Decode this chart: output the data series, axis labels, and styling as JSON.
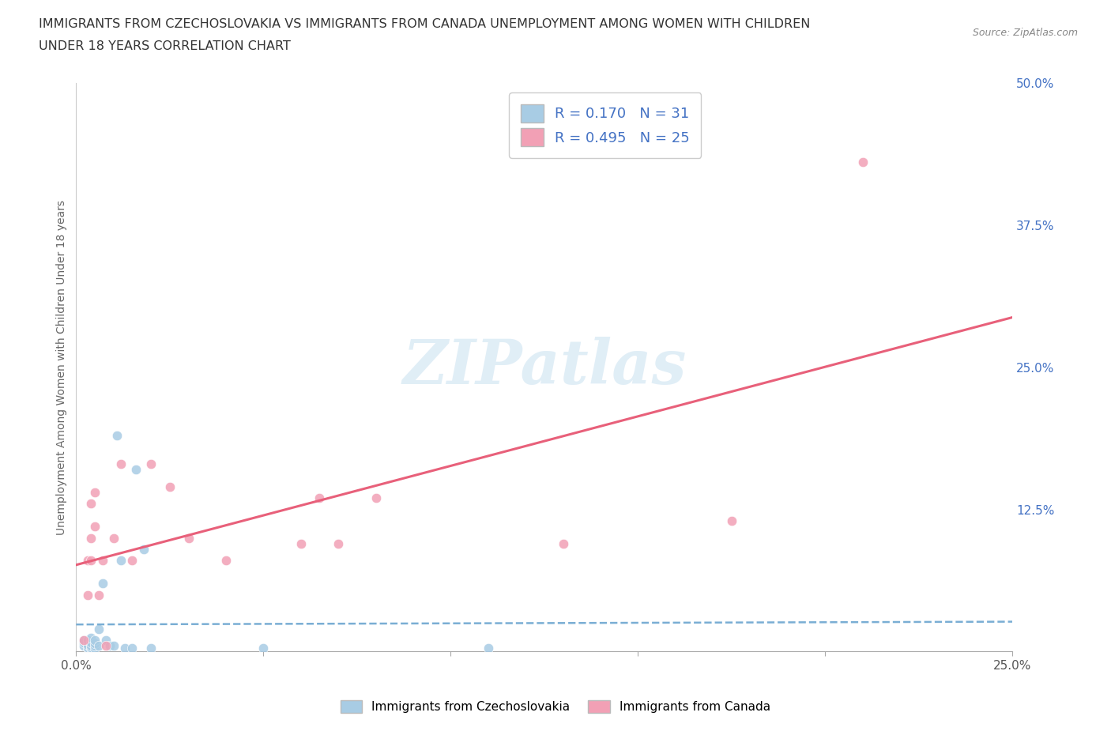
{
  "title_line1": "IMMIGRANTS FROM CZECHOSLOVAKIA VS IMMIGRANTS FROM CANADA UNEMPLOYMENT AMONG WOMEN WITH CHILDREN",
  "title_line2": "UNDER 18 YEARS CORRELATION CHART",
  "source": "Source: ZipAtlas.com",
  "ylabel": "Unemployment Among Women with Children Under 18 years",
  "xlim": [
    0.0,
    0.25
  ],
  "ylim": [
    0.0,
    0.5
  ],
  "xticks": [
    0.0,
    0.05,
    0.1,
    0.15,
    0.2,
    0.25
  ],
  "yticks_right": [
    0.0,
    0.125,
    0.25,
    0.375,
    0.5
  ],
  "ytick_right_labels": [
    "",
    "12.5%",
    "25.0%",
    "37.5%",
    "50.0%"
  ],
  "legend_R1": "R = 0.170",
  "legend_N1": "N = 31",
  "legend_R2": "R = 0.495",
  "legend_N2": "N = 25",
  "color_czech": "#a8cce4",
  "color_canada": "#f2a0b5",
  "color_trend_czech": "#7aaed4",
  "color_trend_canada": "#e8607a",
  "color_text_blue": "#4472c4",
  "watermark": "ZIPatlas",
  "background_color": "#ffffff",
  "grid_color": "#d8d8d8",
  "czech_x": [
    0.002,
    0.002,
    0.002,
    0.003,
    0.003,
    0.003,
    0.003,
    0.004,
    0.004,
    0.004,
    0.004,
    0.004,
    0.005,
    0.005,
    0.005,
    0.005,
    0.006,
    0.006,
    0.007,
    0.008,
    0.009,
    0.01,
    0.011,
    0.012,
    0.013,
    0.015,
    0.016,
    0.018,
    0.02,
    0.05,
    0.11
  ],
  "czech_y": [
    0.005,
    0.008,
    0.01,
    0.003,
    0.004,
    0.006,
    0.01,
    0.003,
    0.004,
    0.005,
    0.008,
    0.012,
    0.003,
    0.005,
    0.007,
    0.01,
    0.005,
    0.02,
    0.06,
    0.01,
    0.005,
    0.005,
    0.19,
    0.08,
    0.003,
    0.003,
    0.16,
    0.09,
    0.003,
    0.003,
    0.003
  ],
  "canada_x": [
    0.002,
    0.003,
    0.003,
    0.004,
    0.004,
    0.004,
    0.005,
    0.005,
    0.006,
    0.007,
    0.008,
    0.01,
    0.012,
    0.015,
    0.02,
    0.025,
    0.03,
    0.04,
    0.06,
    0.065,
    0.07,
    0.08,
    0.13,
    0.175,
    0.21
  ],
  "canada_y": [
    0.01,
    0.05,
    0.08,
    0.08,
    0.1,
    0.13,
    0.11,
    0.14,
    0.05,
    0.08,
    0.005,
    0.1,
    0.165,
    0.08,
    0.165,
    0.145,
    0.1,
    0.08,
    0.095,
    0.135,
    0.095,
    0.135,
    0.095,
    0.115,
    0.43
  ]
}
